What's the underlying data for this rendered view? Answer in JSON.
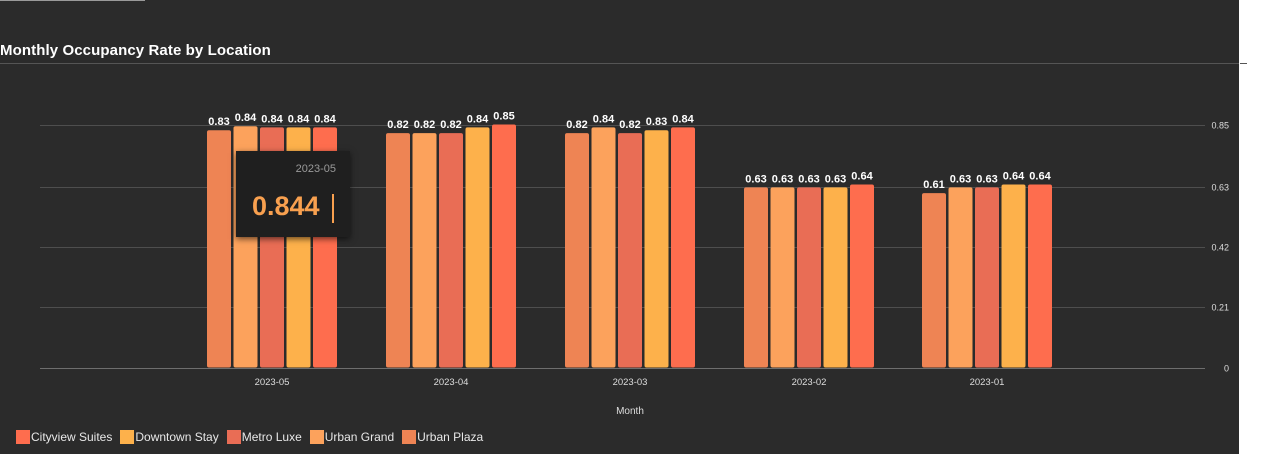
{
  "chart_data": {
    "type": "bar",
    "title": "Monthly Occupancy Rate by Location",
    "xlabel": "Month",
    "ylabel": "",
    "categories": [
      "2023-05",
      "2023-04",
      "2023-03",
      "2023-02",
      "2023-01"
    ],
    "ylim": [
      0,
      0.85
    ],
    "yticks": [
      0,
      0.21,
      0.42,
      0.63,
      0.85
    ],
    "ytick_labels": [
      "0",
      "0.21",
      "0.42",
      "0.63",
      "0.85"
    ],
    "grid": true,
    "legend_position": "bottom-left",
    "series": [
      {
        "name": "Urban Plaza",
        "color": "#ee8454",
        "values": [
          0.83,
          0.82,
          0.82,
          0.63,
          0.61
        ]
      },
      {
        "name": "Urban Grand",
        "color": "#fca25c",
        "values": [
          0.844,
          0.82,
          0.84,
          0.63,
          0.63
        ]
      },
      {
        "name": "Metro Luxe",
        "color": "#e96d55",
        "values": [
          0.84,
          0.82,
          0.82,
          0.63,
          0.63
        ]
      },
      {
        "name": "Downtown Stay",
        "color": "#fdb14b",
        "values": [
          0.84,
          0.84,
          0.83,
          0.63,
          0.64
        ]
      },
      {
        "name": "Cityview Suites",
        "color": "#fe6d4e",
        "values": [
          0.84,
          0.85,
          0.84,
          0.64,
          0.64
        ]
      }
    ],
    "data_labels": [
      [
        "0.83",
        "0.82",
        "0.82",
        "0.63",
        "0.61"
      ],
      [
        "0.84",
        "0.82",
        "0.84",
        "0.63",
        "0.63"
      ],
      [
        "0.84",
        "0.82",
        "0.82",
        "0.63",
        "0.63"
      ],
      [
        "0.84",
        "0.84",
        "0.83",
        "0.63",
        "0.64"
      ],
      [
        "0.84",
        "0.85",
        "0.84",
        "0.64",
        "0.64"
      ]
    ]
  },
  "legend": {
    "items": [
      {
        "label": "Cityview Suites",
        "color": "#fe6d4e"
      },
      {
        "label": "Downtown Stay",
        "color": "#fdb14b"
      },
      {
        "label": "Metro Luxe",
        "color": "#e96d55"
      },
      {
        "label": "Urban Grand",
        "color": "#fca25c"
      },
      {
        "label": "Urban Plaza",
        "color": "#ee8454"
      }
    ]
  },
  "tooltip": {
    "header": "2023-05",
    "value": "0.844",
    "color": "#f8a04f"
  }
}
